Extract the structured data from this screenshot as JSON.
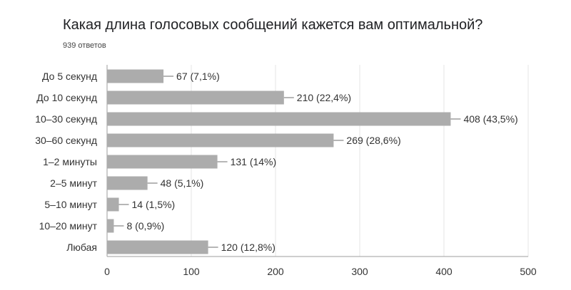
{
  "header": {
    "question": "Какая длина голосовых сообщений кажется вам оптимальной?",
    "responses": "939 ответов"
  },
  "colors": {
    "bar": "#acacac",
    "grid": "#e6e6e6",
    "axis": "#9e9e9e",
    "connector": "#9e9e9e"
  },
  "chart_data": {
    "type": "bar",
    "orientation": "horizontal",
    "title": "Какая длина голосовых сообщений кажется вам оптимальной?",
    "subtitle": "939 ответов",
    "categories": [
      "До 5 секунд",
      "До 10 секунд",
      "10–30 секунд",
      "30–60 секунд",
      "1–2 минуты",
      "2–5 минут",
      "5–10 минут",
      "10–20 минут",
      "Любая"
    ],
    "values": [
      67,
      210,
      408,
      269,
      131,
      48,
      14,
      8,
      120
    ],
    "percents": [
      "7,1%",
      "22,4%",
      "43,5%",
      "28,6%",
      "14%",
      "5,1%",
      "1,5%",
      "0,9%",
      "12,8%"
    ],
    "data_labels": [
      "67 (7,1%)",
      "210 (22,4%)",
      "408 (43,5%)",
      "269 (28,6%)",
      "131 (14%)",
      "48 (5,1%)",
      "14 (1,5%)",
      "8 (0,9%)",
      "120 (12,8%)"
    ],
    "xlim": [
      0,
      500
    ],
    "xticks": [
      "0",
      "100",
      "200",
      "300",
      "400",
      "500"
    ],
    "grid": true,
    "xlabel": "",
    "ylabel": ""
  }
}
